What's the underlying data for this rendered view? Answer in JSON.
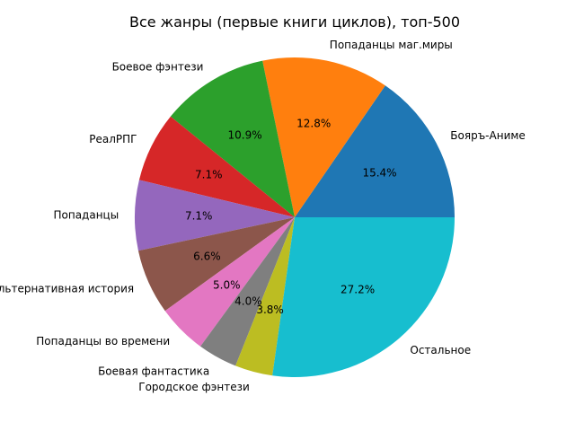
{
  "chart_data": {
    "type": "pie",
    "title": "Все жанры (первые книги циклов), топ-500",
    "labels": [
      "Бояръ-Аниме",
      "Попаданцы маг.миры",
      "Боевое фэнтези",
      "РеалРПГ",
      "Попаданцы",
      "Альтернативная история",
      "Попаданцы во времени",
      "Боевая фантастика",
      "Городское фэнтези",
      "Остальное"
    ],
    "values": [
      15.4,
      12.8,
      10.9,
      7.1,
      7.1,
      6.6,
      5.0,
      4.0,
      3.8,
      27.2
    ],
    "value_labels": [
      "15.4%",
      "12.8%",
      "10.9%",
      "7.1%",
      "7.1%",
      "6.6%",
      "5.0%",
      "4.0%",
      "3.8%",
      "27.2%"
    ],
    "colors": [
      "#1f77b4",
      "#ff7f0e",
      "#2ca02c",
      "#d62728",
      "#9467bd",
      "#8c564b",
      "#e377c2",
      "#7f7f7f",
      "#bcbd22",
      "#17becf"
    ],
    "start_angle_deg": 0,
    "direction": "counterclockwise"
  }
}
